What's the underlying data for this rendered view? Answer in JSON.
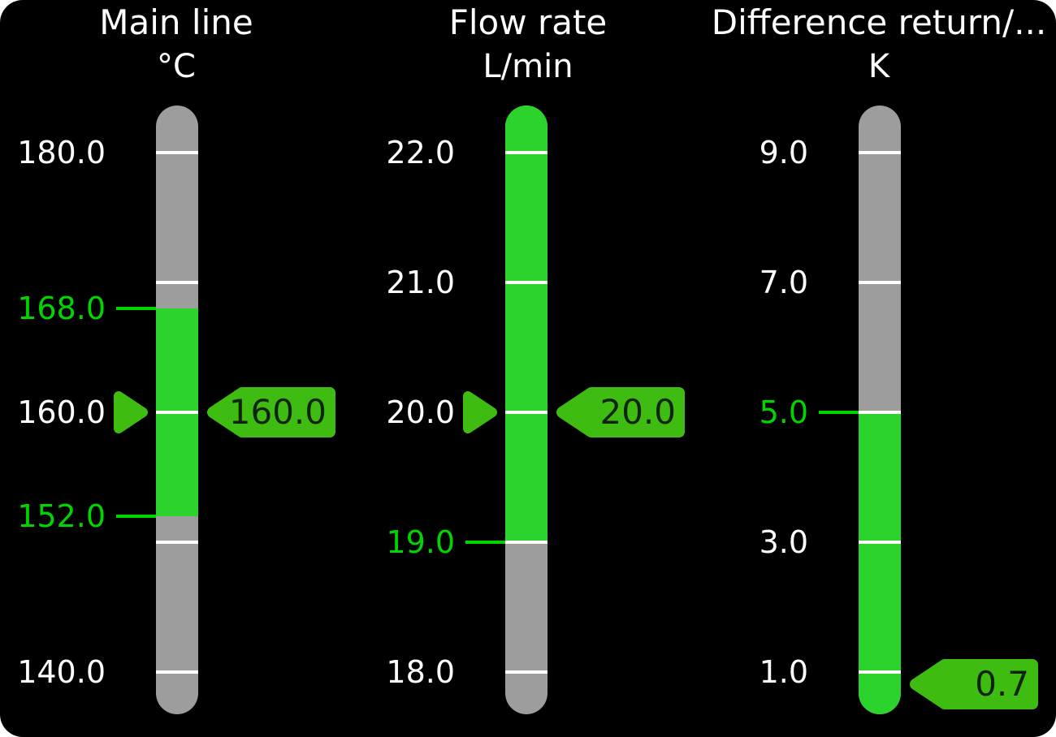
{
  "panel": {
    "background": "#000000",
    "outer_background": "#ffffff"
  },
  "colors": {
    "bar_green": "#2cd32c",
    "bar_gray": "#9d9d9d",
    "tag_green": "#3ebc12",
    "threshold_green": "#00d500",
    "tick_white": "#ffffff",
    "label_white": "#ffffff",
    "tag_text": "#0d230b",
    "title_white": "#ffffff"
  },
  "gauges": [
    {
      "id": "main-line",
      "title": "Main line",
      "unit": "°C",
      "scale_ticks": [
        180,
        170,
        160,
        150,
        140
      ],
      "labels": [
        {
          "value": 180,
          "text": "180.0",
          "style": "normal"
        },
        {
          "value": 168,
          "text": "168.0",
          "style": "threshold"
        },
        {
          "value": 160,
          "text": "160.0",
          "style": "normal"
        },
        {
          "value": 152,
          "text": "152.0",
          "style": "threshold"
        },
        {
          "value": 140,
          "text": "140.0",
          "style": "normal"
        }
      ],
      "green_zone": {
        "from": 152,
        "to": 168
      },
      "value": 160.0,
      "value_text": "160.0",
      "pointer": true
    },
    {
      "id": "flow-rate",
      "title": "Flow rate",
      "unit": "L/min",
      "scale_ticks": [
        22,
        21,
        20,
        19,
        18
      ],
      "labels": [
        {
          "value": 22,
          "text": "22.0",
          "style": "normal"
        },
        {
          "value": 21,
          "text": "21.0",
          "style": "normal"
        },
        {
          "value": 20,
          "text": "20.0",
          "style": "normal"
        },
        {
          "value": 19,
          "text": "19.0",
          "style": "threshold"
        },
        {
          "value": 18,
          "text": "18.0",
          "style": "normal"
        }
      ],
      "green_zone": {
        "from": 19,
        "to": "bar_top"
      },
      "value": 20.0,
      "value_text": "20.0",
      "pointer": true
    },
    {
      "id": "difference-return",
      "title": "Difference return/...",
      "unit": "K",
      "scale_ticks": [
        9,
        7,
        5,
        3,
        1
      ],
      "labels": [
        {
          "value": 9,
          "text": "9.0",
          "style": "normal"
        },
        {
          "value": 7,
          "text": "7.0",
          "style": "normal"
        },
        {
          "value": 5,
          "text": "5.0",
          "style": "threshold"
        },
        {
          "value": 3,
          "text": "3.0",
          "style": "normal"
        },
        {
          "value": 1,
          "text": "1.0",
          "style": "normal"
        }
      ],
      "green_zone": {
        "from": "bar_bottom",
        "to": 5
      },
      "value": 0.7,
      "value_text": "0.7",
      "pointer": false
    }
  ]
}
